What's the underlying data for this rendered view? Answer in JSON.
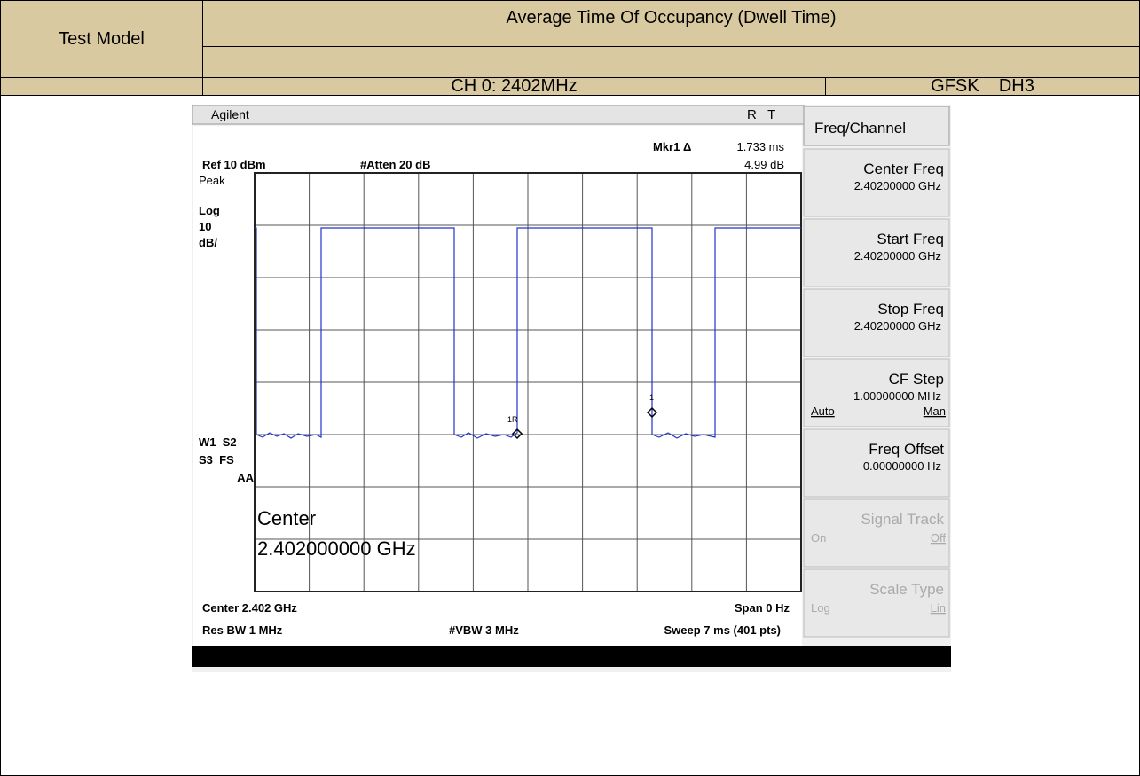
{
  "header": {
    "test_model": "Test Model",
    "test_item": "Average Time Of Occupancy (Dwell Time)",
    "channel": "CH 0: 2402MHz",
    "mode": "GFSK    DH3"
  },
  "screen": {
    "brand": "Agilent",
    "status": "R   T",
    "marker_label": "Mkr1 Δ",
    "marker_time": "1.733 ms",
    "marker_level": "4.99 dB",
    "ref_level": "Ref 10 dBm",
    "atten": "#Atten 20 dB",
    "left_labels": [
      "Peak",
      "Log",
      "10",
      "dB/"
    ],
    "flags": [
      "W1  S2",
      "S3  FS",
      "AA"
    ],
    "center_big_label": "Center",
    "center_big_value": "2.402000000 GHz",
    "footer_center": "Center 2.402 GHz",
    "footer_span": "Span 0 Hz",
    "footer_rbw": "Res BW 1 MHz",
    "footer_vbw": "#VBW 3 MHz",
    "footer_sweep": "Sweep 7 ms (401 pts)",
    "marker_1r": "1R",
    "marker_1": "1"
  },
  "menu": {
    "title": "Freq/Channel",
    "keys": [
      {
        "name": "Center Freq",
        "value": "2.40200000 GHz"
      },
      {
        "name": "Start Freq",
        "value": "2.40200000 GHz"
      },
      {
        "name": "Stop Freq",
        "value": "2.40200000 GHz"
      },
      {
        "name": "CF Step",
        "value": "1.00000000 MHz",
        "left": "Auto",
        "right": "Man"
      },
      {
        "name": "Freq Offset",
        "value": "0.00000000  Hz"
      },
      {
        "name": "Signal Track",
        "left": "On",
        "right": "Off"
      },
      {
        "name": "Scale Type",
        "left": "Log",
        "right": "Lin"
      }
    ]
  }
}
